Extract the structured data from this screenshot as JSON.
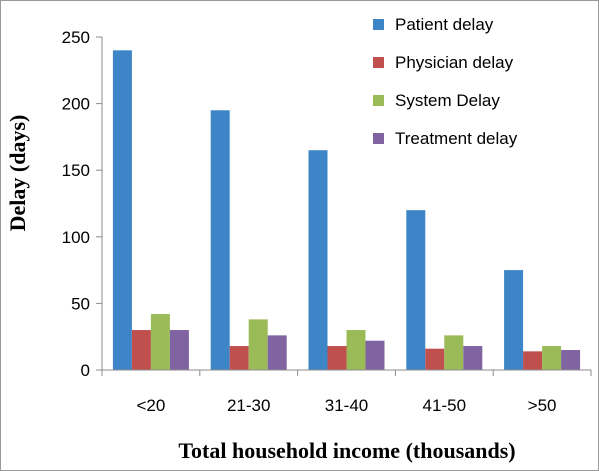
{
  "chart_data": {
    "type": "bar",
    "title": "",
    "xlabel": "Total household income (thousands)",
    "ylabel": "Delay (days)",
    "categories": [
      "<20",
      "21-30",
      "31-40",
      "41-50",
      ">50"
    ],
    "ylim": [
      0,
      250
    ],
    "yticks": [
      0,
      50,
      100,
      150,
      200,
      250
    ],
    "grid": false,
    "legend_position": "top-right",
    "series": [
      {
        "name": "Patient delay",
        "color": "#3d85c6",
        "values": [
          240,
          195,
          165,
          120,
          75
        ]
      },
      {
        "name": "Physician delay",
        "color": "#c0504d",
        "values": [
          30,
          18,
          18,
          16,
          14
        ]
      },
      {
        "name": "System Delay",
        "color": "#9bbb59",
        "values": [
          42,
          38,
          30,
          26,
          18
        ]
      },
      {
        "name": "Treatment delay",
        "color": "#8064a2",
        "values": [
          30,
          26,
          22,
          18,
          15
        ]
      }
    ]
  }
}
